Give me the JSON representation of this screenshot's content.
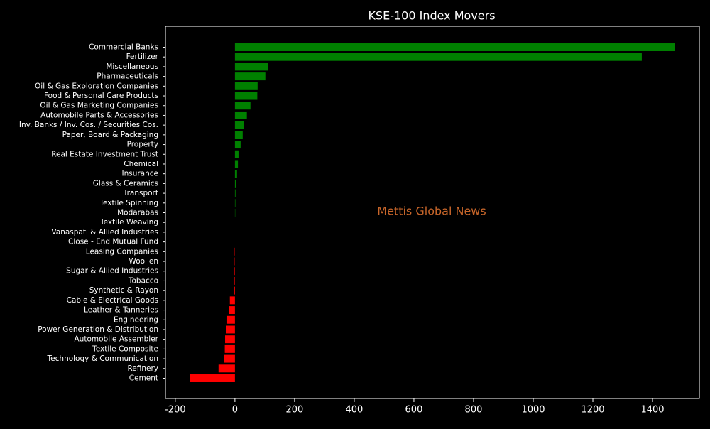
{
  "chart_data": {
    "type": "barh",
    "title": "KSE-100 Index Movers",
    "watermark": "Mettis Global News",
    "categories": [
      "Commercial Banks",
      "Fertilizer",
      "Miscellaneous",
      "Pharmaceuticals",
      "Oil & Gas Exploration Companies",
      "Food & Personal Care Products",
      "Oil & Gas Marketing Companies",
      "Automobile Parts & Accessories",
      "Inv. Banks / Inv. Cos. / Securities Cos.",
      "Paper, Board & Packaging",
      "Property",
      "Real Estate Investment Trust",
      "Chemical",
      "Insurance",
      "Glass & Ceramics",
      "Transport",
      "Textile Spinning",
      "Modarabas",
      "Textile Weaving",
      "Vanaspati & Allied Industries",
      "Close - End Mutual Fund",
      "Leasing Companies",
      "Woollen",
      "Sugar & Allied Industries",
      "Tobacco",
      "Synthetic & Rayon",
      "Cable & Electrical Goods",
      "Leather & Tanneries",
      "Engineering",
      "Power Generation & Distribution",
      "Automobile Assembler",
      "Textile Composite",
      "Technology & Communication",
      "Refinery",
      "Cement"
    ],
    "values": [
      1476,
      1364,
      112,
      102,
      76,
      75,
      52,
      40,
      31,
      26,
      19,
      12,
      10,
      7,
      5,
      2,
      1.5,
      1,
      0,
      0,
      0,
      -1,
      -1,
      -1.5,
      -1.5,
      -2,
      -17,
      -19,
      -26,
      -29,
      -33,
      -34,
      -36,
      -55,
      -152
    ],
    "positive_color": "#008000",
    "negative_color": "#ff0000",
    "watermark_color": "#c8662a",
    "xlim": [
      -233,
      1557
    ],
    "xticks": [
      -200,
      0,
      200,
      400,
      600,
      800,
      1000,
      1200,
      1400
    ]
  }
}
